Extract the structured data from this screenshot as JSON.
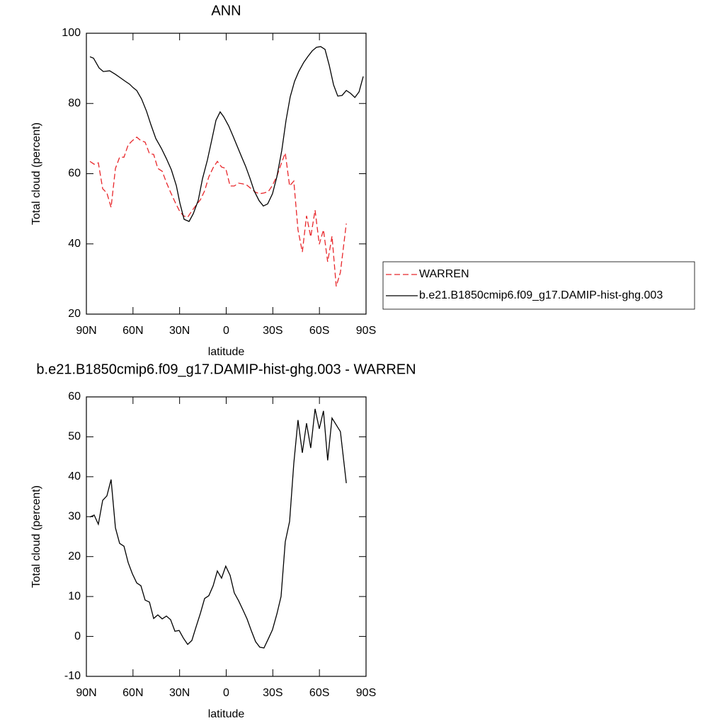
{
  "chart_data": [
    {
      "type": "line",
      "title": "ANN",
      "xlabel": "latitude",
      "ylabel": "Total cloud (percent)",
      "xlim": [
        90,
        -90
      ],
      "xticks": [
        {
          "value": 90,
          "label": "90N"
        },
        {
          "value": 60,
          "label": "60N"
        },
        {
          "value": 30,
          "label": "30N"
        },
        0,
        {
          "value": -30,
          "label": "30S"
        },
        {
          "value": -60,
          "label": "60S"
        },
        {
          "value": -90,
          "label": "90S"
        }
      ],
      "ylim": [
        20,
        100
      ],
      "yticks": [
        20,
        40,
        60,
        80,
        100
      ],
      "legend": "right",
      "series": [
        {
          "name": "WARREN",
          "color": "#e8262a",
          "dash": true,
          "x": [
            87.7,
            85.0,
            82.3,
            79.5,
            76.8,
            74.1,
            71.3,
            68.6,
            65.8,
            63.1,
            60.4,
            57.6,
            54.9,
            52.2,
            49.4,
            46.7,
            44.0,
            41.2,
            38.5,
            35.8,
            33.0,
            30.3,
            27.6,
            24.8,
            22.1,
            19.4,
            16.6,
            13.9,
            11.2,
            8.4,
            5.7,
            3.0,
            0.3,
            -2.5,
            -5.2,
            -7.9,
            -10.7,
            -13.4,
            -16.1,
            -18.9,
            -21.6,
            -24.3,
            -27.1,
            -29.8,
            -32.6,
            -35.3,
            -38.0,
            -40.8,
            -43.5,
            -46.2,
            -49.0,
            -51.7,
            -54.4,
            -57.2,
            -59.9,
            -62.6,
            -65.3,
            -68.1,
            -70.8,
            -73.5,
            -77.3
          ],
          "values": [
            63.5,
            62.7,
            63.1,
            55.7,
            54.5,
            50.4,
            61.5,
            64.7,
            64.7,
            68.2,
            69.4,
            70.4,
            69.4,
            69.0,
            65.7,
            65.5,
            61.5,
            60.7,
            57.5,
            54.7,
            52.0,
            49.6,
            48.0,
            47.6,
            49.4,
            51.0,
            52.6,
            55.1,
            59.1,
            61.7,
            63.5,
            61.9,
            61.5,
            56.5,
            56.5,
            57.3,
            57.1,
            56.7,
            55.7,
            54.7,
            54.3,
            54.5,
            54.9,
            56.7,
            59.3,
            62.7,
            65.9,
            56.5,
            57.9,
            44.0,
            37.7,
            48.0,
            42.0,
            49.6,
            39.9,
            44.0,
            34.9,
            42.2,
            27.9,
            31.9,
            45.8
          ]
        },
        {
          "name": "b.e21.B1850cmip6.f09_g17.DAMIP-hist-ghg.003",
          "color": "#000000",
          "dash": false,
          "x": [
            87.7,
            85.4,
            81.8,
            79.1,
            75.0,
            71.3,
            68.1,
            64.9,
            62.2,
            59.9,
            57.6,
            54.5,
            51.3,
            48.5,
            45.3,
            41.7,
            38.5,
            35.3,
            32.1,
            29.8,
            27.1,
            23.9,
            21.2,
            18.0,
            15.3,
            12.1,
            9.3,
            6.6,
            3.9,
            1.6,
            -1.6,
            -4.3,
            -7.1,
            -9.8,
            -12.5,
            -15.3,
            -18.0,
            -21.2,
            -23.9,
            -26.7,
            -29.8,
            -32.6,
            -35.8,
            -38.5,
            -41.2,
            -44.0,
            -46.7,
            -49.9,
            -52.6,
            -55.4,
            -58.1,
            -60.8,
            -63.6,
            -66.3,
            -69.1,
            -71.8,
            -74.6,
            -77.3,
            -80.0,
            -82.8,
            -85.5,
            -88.2
          ],
          "values": [
            93.3,
            92.9,
            90.1,
            89.1,
            89.3,
            88.3,
            87.3,
            86.3,
            85.5,
            84.5,
            83.7,
            81.3,
            77.8,
            74.0,
            70.0,
            67.2,
            64.3,
            61.1,
            56.6,
            51.6,
            47.0,
            46.4,
            48.6,
            52.4,
            58.5,
            63.9,
            69.6,
            75.2,
            77.6,
            76.2,
            73.6,
            70.8,
            67.8,
            64.9,
            62.1,
            58.7,
            55.1,
            52.3,
            50.8,
            51.4,
            54.3,
            59.1,
            66.7,
            75.2,
            81.9,
            86.3,
            89.1,
            91.7,
            93.4,
            95.0,
            96.0,
            96.2,
            95.4,
            90.9,
            85.3,
            82.1,
            82.3,
            83.7,
            82.9,
            81.7,
            83.3,
            87.7
          ]
        }
      ]
    },
    {
      "type": "line",
      "title": "b.e21.B1850cmip6.f09_g17.DAMIP-hist-ghg.003 - WARREN",
      "xlabel": "latitude",
      "ylabel": "Total cloud (percent)",
      "xlim": [
        90,
        -90
      ],
      "xticks": [
        {
          "value": 90,
          "label": "90N"
        },
        {
          "value": 60,
          "label": "60N"
        },
        {
          "value": 30,
          "label": "30N"
        },
        0,
        {
          "value": -30,
          "label": "30S"
        },
        {
          "value": -60,
          "label": "60S"
        },
        {
          "value": -90,
          "label": "90S"
        }
      ],
      "ylim": [
        -10,
        60
      ],
      "yticks": [
        -10,
        0,
        10,
        20,
        30,
        40,
        50,
        60
      ],
      "series": [
        {
          "color": "#000000",
          "dash": false,
          "x": [
            87.7,
            85.0,
            82.3,
            79.5,
            76.8,
            74.1,
            71.3,
            68.6,
            65.8,
            63.1,
            60.4,
            57.6,
            54.9,
            52.2,
            49.4,
            46.7,
            44.0,
            41.2,
            38.5,
            35.8,
            33.0,
            30.3,
            27.6,
            24.8,
            22.1,
            19.4,
            16.6,
            13.9,
            11.2,
            8.4,
            5.7,
            3.0,
            0.3,
            -2.5,
            -5.2,
            -7.9,
            -10.7,
            -13.4,
            -16.1,
            -18.9,
            -21.6,
            -24.3,
            -27.1,
            -29.8,
            -32.6,
            -35.3,
            -38.0,
            -40.8,
            -43.5,
            -46.2,
            -49.0,
            -51.7,
            -54.4,
            -57.2,
            -59.9,
            -62.6,
            -65.3,
            -68.1,
            -73.5,
            -77.3
          ],
          "values": [
            29.9,
            30.4,
            28.1,
            34.1,
            35.2,
            39.3,
            27.2,
            23.3,
            22.6,
            18.5,
            15.7,
            13.4,
            12.7,
            9.1,
            8.6,
            4.5,
            5.4,
            4.4,
            5.1,
            4.2,
            1.3,
            1.5,
            -0.4,
            -2.0,
            -1.0,
            2.4,
            5.8,
            9.5,
            10.2,
            12.7,
            16.4,
            14.6,
            17.6,
            15.3,
            10.9,
            9.0,
            6.7,
            4.4,
            1.5,
            -1.3,
            -2.7,
            -2.9,
            -0.6,
            1.7,
            5.6,
            10.0,
            23.7,
            28.8,
            43.3,
            54.2,
            46.0,
            53.4,
            47.2,
            57.0,
            52.0,
            56.5,
            44.1,
            54.7,
            51.3,
            38.4
          ]
        }
      ]
    }
  ]
}
